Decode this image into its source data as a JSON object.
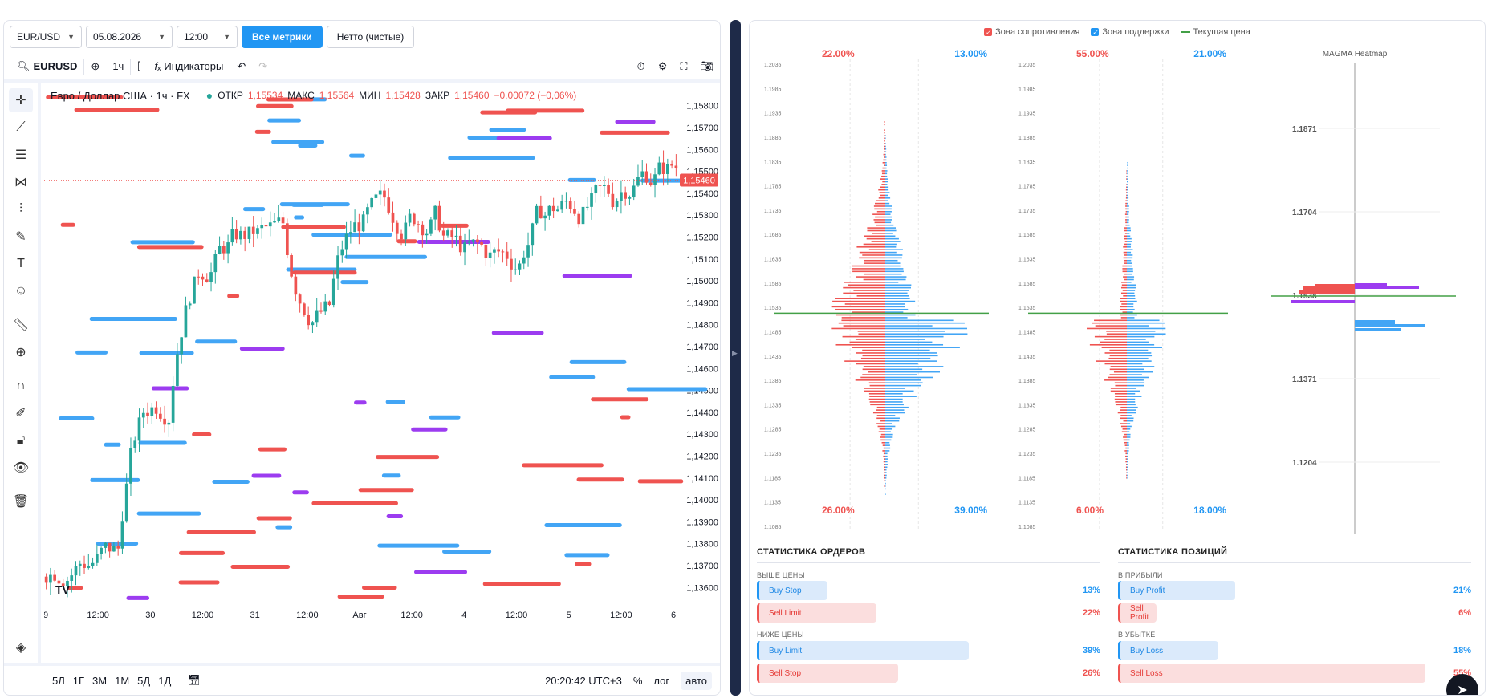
{
  "top": {
    "pair": "EUR/USD",
    "date": "05.08.2026",
    "time": "12:00",
    "btn_all": "Все метрики",
    "btn_net": "Нетто (чистые)"
  },
  "toolbar": {
    "symbol": "EURUSD",
    "interval": "1ч",
    "indicators": "Индикаторы"
  },
  "legend": {
    "title": "Евро / Доллар США · 1ч · FX",
    "open_label": "ОТКР",
    "open": "1,15534",
    "high_label": "МАКС",
    "high": "1,15564",
    "low_label": "МИН",
    "low": "1,15428",
    "close_label": "ЗАКР",
    "close": "1,15460",
    "change": "−0,00072 (−0,06%)"
  },
  "colors": {
    "up": "#26a69a",
    "down": "#ef5350",
    "blue": "#42a5f5",
    "purple": "#9c3cf0",
    "accent": "#2196f3"
  },
  "chart_data": {
    "type": "candlestick",
    "price_axis": [
      "1,15800",
      "1,15700",
      "1,15600",
      "1,15500",
      "1,15400",
      "1,15300",
      "1,15200",
      "1,15100",
      "1,15000",
      "1,14900",
      "1,14800",
      "1,14700",
      "1,14600",
      "1,14500",
      "1,14400",
      "1,14300",
      "1,14200",
      "1,14100",
      "1,14000",
      "1,13900",
      "1,13800",
      "1,13700",
      "1,13600"
    ],
    "time_axis": [
      "9",
      "12:00",
      "30",
      "12:00",
      "31",
      "12:00",
      "Авг",
      "12:00",
      "4",
      "12:00",
      "5",
      "12:00",
      "6"
    ],
    "ylim": [
      1.1355,
      1.1585
    ],
    "current_price": 1.1546,
    "current_price_label": "1,15460"
  },
  "bottombar": {
    "timeframes": [
      "5Л",
      "1Г",
      "3М",
      "1М",
      "5Д",
      "1Д"
    ],
    "clock": "20:20:42 UTC+3",
    "pct": "%",
    "log": "лог",
    "auto": "авто"
  },
  "right": {
    "legend": {
      "resist": "Зона сопротивления",
      "support": "Зона поддержки",
      "current": "Текущая цена"
    },
    "book1": {
      "tl": "22.00%",
      "tr": "13.00%",
      "bl": "26.00%",
      "br": "39.00%"
    },
    "book2": {
      "tl": "55.00%",
      "tr": "21.00%",
      "bl": "6.00%",
      "br": "18.00%"
    },
    "book_axis": [
      "1.2035",
      "1.1985",
      "1.1935",
      "1.1885",
      "1.1835",
      "1.1785",
      "1.1735",
      "1.1685",
      "1.1635",
      "1.1585",
      "1.1535",
      "1.1485",
      "1.1435",
      "1.1385",
      "1.1335",
      "1.1285",
      "1.1235",
      "1.1185",
      "1.1135",
      "1.1085"
    ],
    "heatmap": {
      "title": "MAGMA Heatmap",
      "levels": [
        "1.1871",
        "1.1704",
        "1.1538",
        "1.1371",
        "1.1204"
      ]
    },
    "orders": {
      "title": "СТАТИСТИКА ОРДЕРОВ",
      "above": "ВЫШЕ ЦЕНЫ",
      "below": "НИЖЕ ЦЕНЫ",
      "rows": [
        {
          "label": "Buy Stop",
          "pct": "13%",
          "value": 13
        },
        {
          "label": "Sell Limit",
          "pct": "22%",
          "value": 22
        },
        {
          "label": "Buy Limit",
          "pct": "39%",
          "value": 39
        },
        {
          "label": "Sell Stop",
          "pct": "26%",
          "value": 26
        }
      ]
    },
    "positions": {
      "title": "СТАТИСТИКА ПОЗИЦИЙ",
      "profit": "В ПРИБЫЛИ",
      "loss": "В УБЫТКЕ",
      "rows": [
        {
          "label": "Buy Profit",
          "pct": "21%",
          "value": 21
        },
        {
          "label": "Sell Profit",
          "pct": "6%",
          "value": 6
        },
        {
          "label": "Buy Loss",
          "pct": "18%",
          "value": 18
        },
        {
          "label": "Sell Loss",
          "pct": "55%",
          "value": 55
        }
      ]
    }
  }
}
